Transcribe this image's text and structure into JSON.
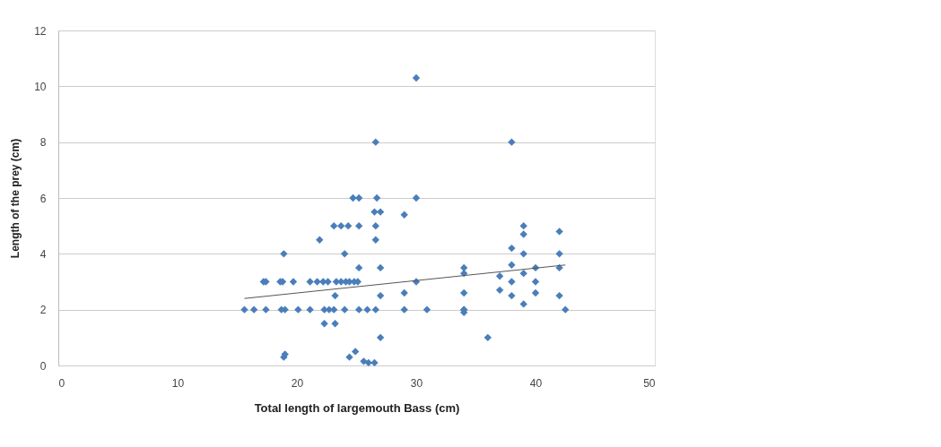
{
  "chart_data": {
    "type": "scatter",
    "xlabel": "Total length of largemouth Bass (cm)",
    "ylabel": "Length of the prey (cm)",
    "xlim": [
      0,
      50
    ],
    "xticks": [
      0,
      10,
      20,
      30,
      40,
      50
    ],
    "ylim": [
      0,
      12
    ],
    "yticks": [
      0,
      2,
      4,
      6,
      8,
      10,
      12
    ],
    "grid": "y",
    "series": [
      {
        "color": "#4a7ebb",
        "marker": "diamond",
        "x": [
          15.6,
          16.4,
          17.4,
          18.7,
          19.0,
          20.1,
          21.1,
          22.3,
          22.7,
          23.1,
          24.0,
          25.2,
          25.9,
          26.6,
          29.0,
          30.9,
          34.0,
          42.5,
          17.2,
          17.4,
          18.6,
          18.8,
          19.7,
          21.1,
          21.7,
          22.2,
          22.6,
          23.3,
          23.7,
          24.1,
          24.4,
          24.8,
          25.1,
          30.0,
          18.9,
          24.0,
          24.7,
          25.2,
          26.7,
          30.0,
          26.5,
          27.0,
          29.0,
          23.1,
          23.7,
          24.3,
          25.2,
          26.6,
          21.9,
          26.6,
          25.2,
          27.0,
          23.2,
          27.0,
          29.0,
          22.3,
          23.2,
          27.0,
          18.9,
          19.0,
          24.4,
          24.9,
          25.6,
          26.0,
          26.5,
          26.6,
          30.0,
          38.0,
          34.0,
          34.0,
          34.0,
          34.0,
          34.0,
          36.0,
          37.0,
          37.0,
          38.0,
          38.0,
          38.0,
          38.0,
          39.0,
          39.0,
          39.0,
          39.0,
          39.0,
          40.0,
          40.0,
          40.0,
          42.0,
          42.0,
          42.0,
          42.0
        ],
        "values": [
          2,
          2,
          2,
          2,
          2,
          2,
          2,
          2,
          2,
          2,
          2,
          2,
          2,
          2,
          2,
          2,
          2,
          2,
          3,
          3,
          3,
          3,
          3,
          3,
          3,
          3,
          3,
          3,
          3,
          3,
          3,
          3,
          3,
          3,
          4,
          4,
          6,
          6,
          6,
          6,
          5.5,
          5.5,
          5.4,
          5,
          5,
          5,
          5,
          5,
          4.5,
          4.5,
          3.5,
          3.5,
          2.5,
          2.5,
          2.6,
          1.5,
          1.5,
          1,
          0.3,
          0.4,
          0.3,
          0.5,
          0.15,
          0.1,
          0.1,
          8,
          10.3,
          8,
          3.5,
          3.3,
          2.6,
          2.0,
          1.9,
          1.0,
          3.2,
          2.7,
          4.2,
          3.6,
          3.0,
          2.5,
          5.0,
          4.7,
          4.0,
          3.3,
          2.2,
          3.5,
          3.0,
          2.6,
          4.8,
          4.0,
          3.5,
          2.5
        ]
      },
      {
        "color": "#555555",
        "type": "line",
        "marker": "none",
        "x": [
          15.6,
          42.5
        ],
        "values": [
          2.4,
          3.6
        ]
      }
    ]
  }
}
